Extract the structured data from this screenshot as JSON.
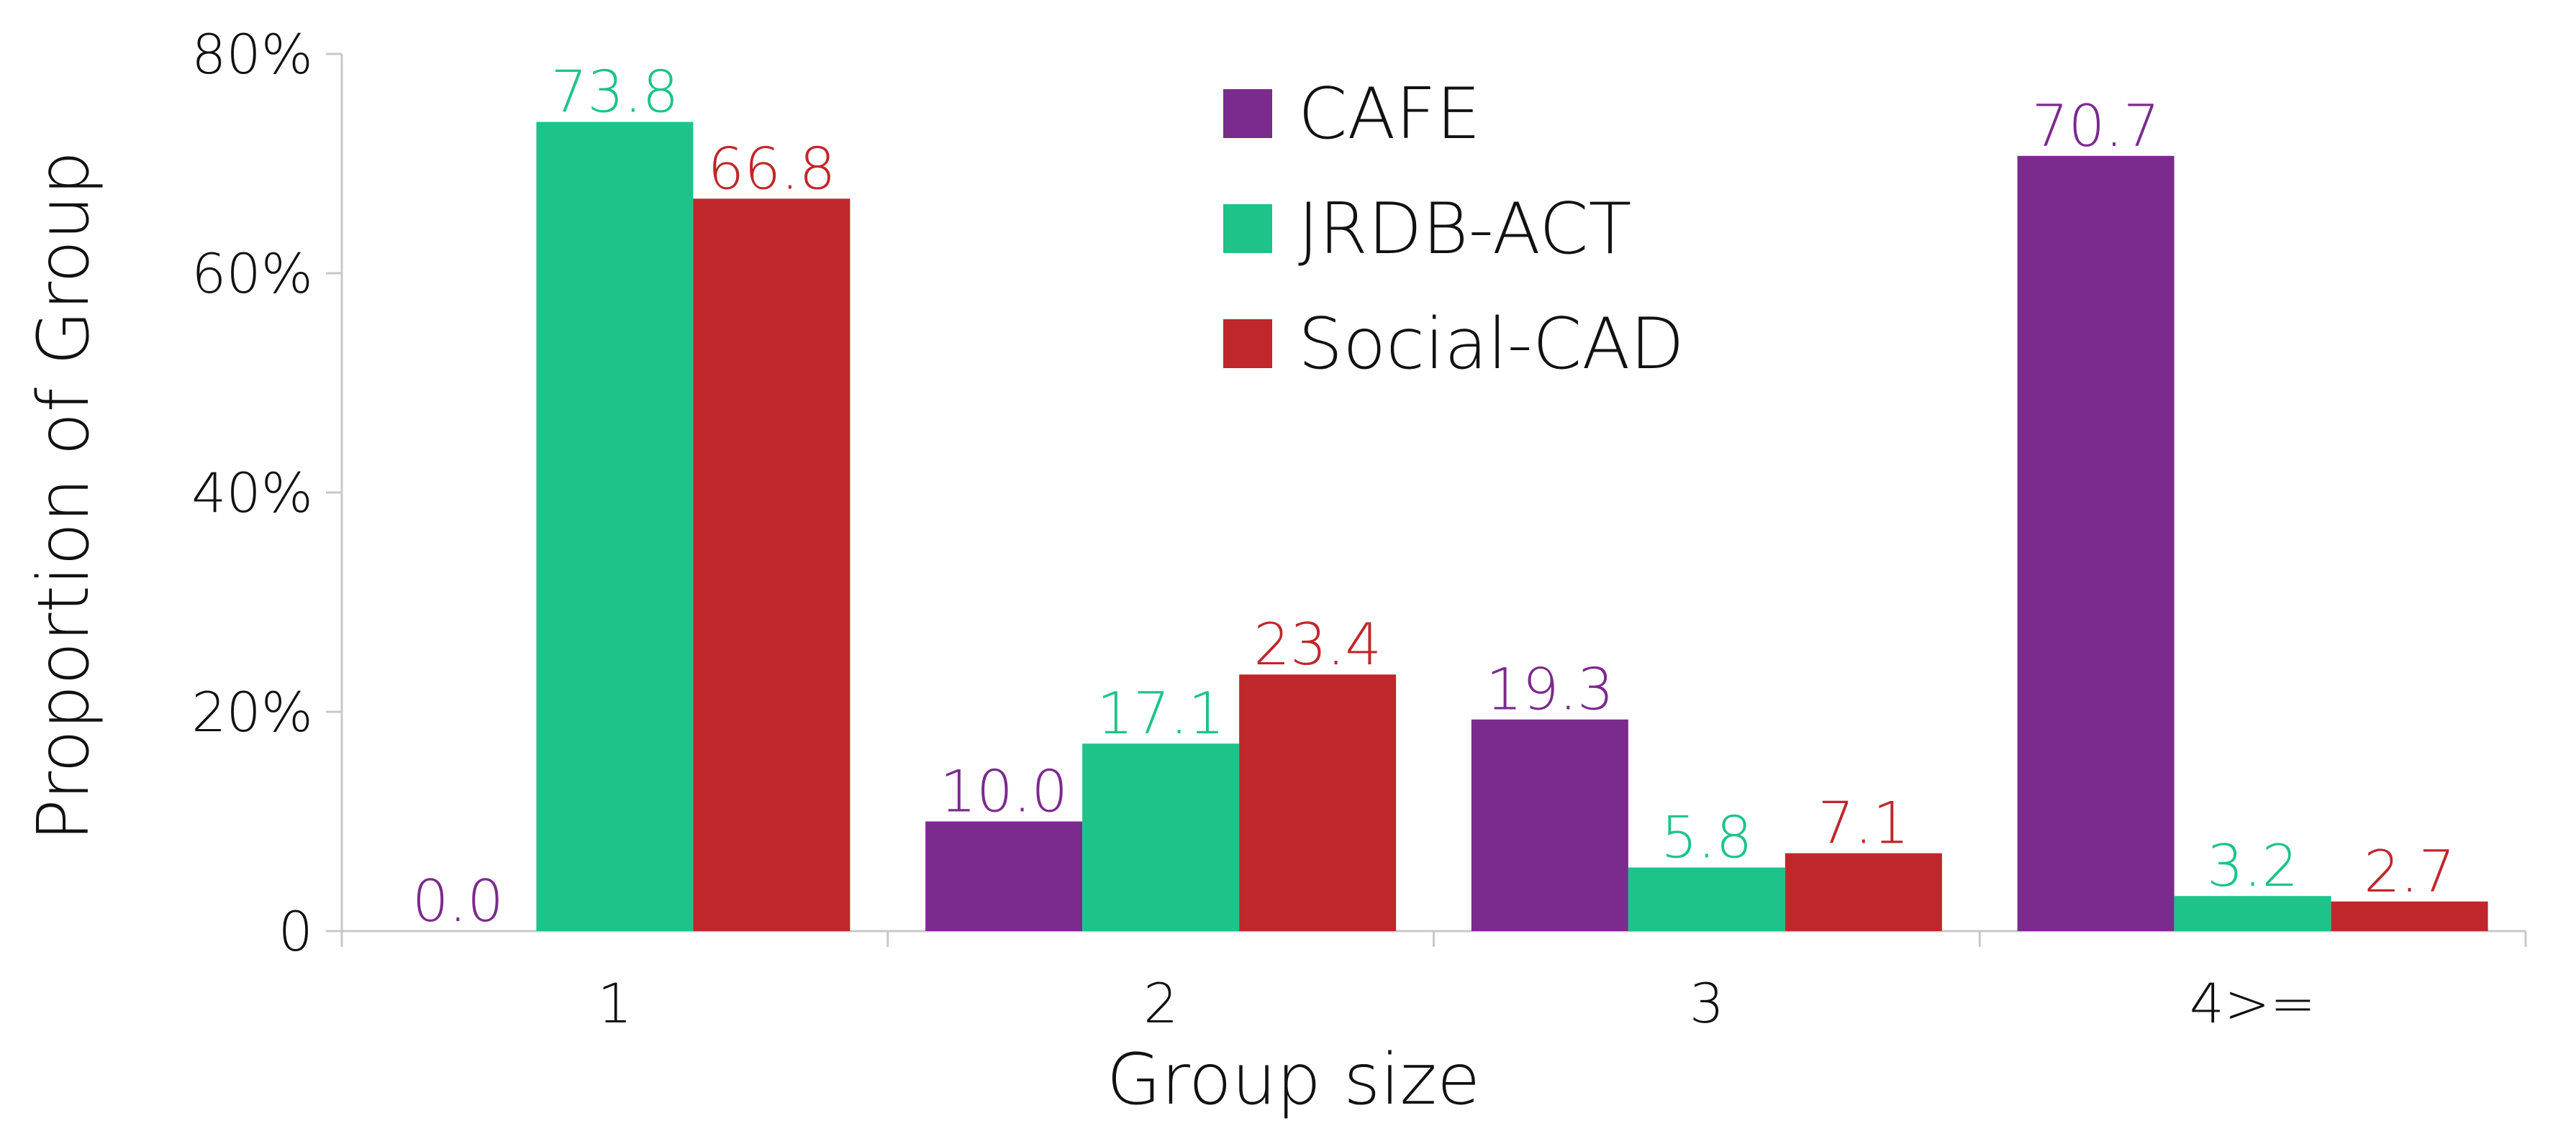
{
  "chart_data": {
    "type": "bar",
    "categories": [
      "1",
      "2",
      "3",
      "4>="
    ],
    "series": [
      {
        "name": "CAFE",
        "values": [
          0.0,
          10.0,
          19.3,
          70.7
        ],
        "labels": [
          "0.0",
          "10.0",
          "19.3",
          "70.7"
        ],
        "color": "#7b2a8e"
      },
      {
        "name": "JRDB-ACT",
        "values": [
          73.8,
          17.1,
          5.8,
          3.2
        ],
        "labels": [
          "73.8",
          "17.1",
          "5.8",
          "3.2"
        ],
        "color": "#1ec38a"
      },
      {
        "name": "Social-CAD",
        "values": [
          66.8,
          23.4,
          7.1,
          2.7
        ],
        "labels": [
          "66.8",
          "23.4",
          "7.1",
          "2.7"
        ],
        "color": "#c0272a"
      }
    ],
    "title": "",
    "xlabel": "Group size",
    "ylabel": "Proportion of Group",
    "ylim": [
      0,
      80
    ],
    "yticks": [
      {
        "value": 0,
        "label": "0"
      },
      {
        "value": 20,
        "label": "20%"
      },
      {
        "value": 40,
        "label": "40%"
      },
      {
        "value": 60,
        "label": "60%"
      },
      {
        "value": 80,
        "label": "80%"
      }
    ],
    "grid": false,
    "legend_position": "top-center",
    "axis_color": "#c8c8c8"
  }
}
